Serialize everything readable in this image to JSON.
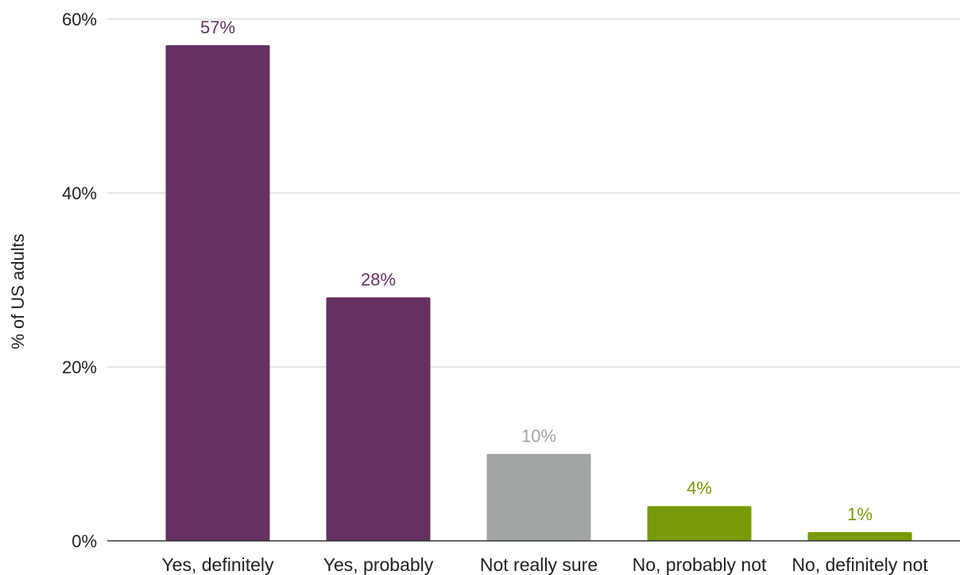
{
  "chart_data": {
    "type": "bar",
    "title": "",
    "xlabel": "",
    "ylabel": "% of US adults",
    "categories": [
      "Yes, definitely",
      "Yes, probably",
      "Not really sure",
      "No, probably not",
      "No, definitely not"
    ],
    "values": [
      57,
      28,
      10,
      4,
      1
    ],
    "data_labels": [
      "57%",
      "28%",
      "10%",
      "4%",
      "1%"
    ],
    "colors": [
      "#663063",
      "#663063",
      "#A2A5A6",
      "#789A06",
      "#789A06"
    ],
    "label_colors": [
      "#663063",
      "#663063",
      "#A2A5A6",
      "#789A06",
      "#789A06"
    ],
    "ylim": [
      0,
      60
    ],
    "yticks": [
      0,
      20,
      40,
      60
    ],
    "ytick_labels": [
      "0%",
      "20%",
      "40%",
      "60%"
    ],
    "grid": true,
    "legend": "none"
  }
}
